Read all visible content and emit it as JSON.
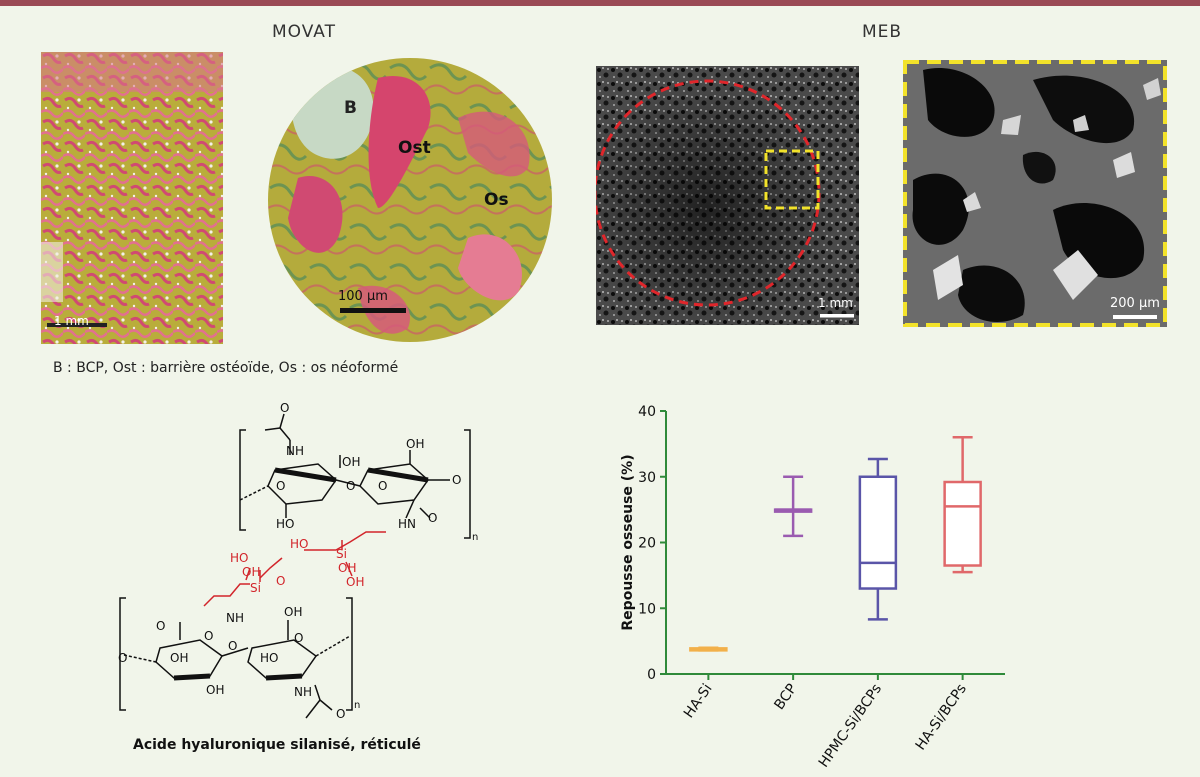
{
  "figure": {
    "colors": {
      "top_bar": "#9a4a55",
      "background": "#f1f5ea"
    },
    "movat": {
      "title": "MOVAT",
      "panel1_scale_label": "1 mm",
      "panel2_scale_label": "100 µm",
      "panel2_labels": {
        "b": "B",
        "ost": "Ost",
        "os": "Os"
      }
    },
    "meb": {
      "title": "MEB",
      "panel1_scale_label": "1 mm",
      "panel2_scale_label": "200 µm"
    },
    "legend_text": "B : BCP, Ost : barrière ostéoïde, Os : os néoformé",
    "molecule": {
      "title": "Acide hyaluronique silanisé, réticulé",
      "subscript_n": "n",
      "atoms": {
        "o": "O",
        "oh": "OH",
        "ho": "HO",
        "nh": "NH",
        "hn": "HN",
        "si": "Si"
      }
    }
  },
  "chart_data": {
    "type": "boxplot",
    "ylabel": "Repousse osseuse (%)",
    "xlabel": "",
    "ylim": [
      0,
      40
    ],
    "yticks": [
      0,
      10,
      20,
      30,
      40
    ],
    "grid": false,
    "categories": [
      "HA-Si",
      "BCP",
      "HPMC-Si/BCPs",
      "HA-Si/BCPs"
    ],
    "series": [
      {
        "category": "HA-Si",
        "min": 3.6,
        "q1": 3.7,
        "median": 3.8,
        "q3": 3.9,
        "max": 4.0,
        "color": "#f2b04a"
      },
      {
        "category": "BCP",
        "min": 21.0,
        "q1": 25.0,
        "median": 25.0,
        "q3": 25.0,
        "max": 30.0,
        "color": "#9a5bb0"
      },
      {
        "category": "HPMC-Si/BCPs",
        "min": 8.3,
        "q1": 13.0,
        "median": 16.9,
        "q3": 30.0,
        "max": 32.7,
        "color": "#5a55a8"
      },
      {
        "category": "HA-Si/BCPs",
        "min": 15.5,
        "q1": 16.5,
        "median": 25.5,
        "q3": 29.2,
        "max": 36.0,
        "color": "#e0686a"
      }
    ]
  }
}
